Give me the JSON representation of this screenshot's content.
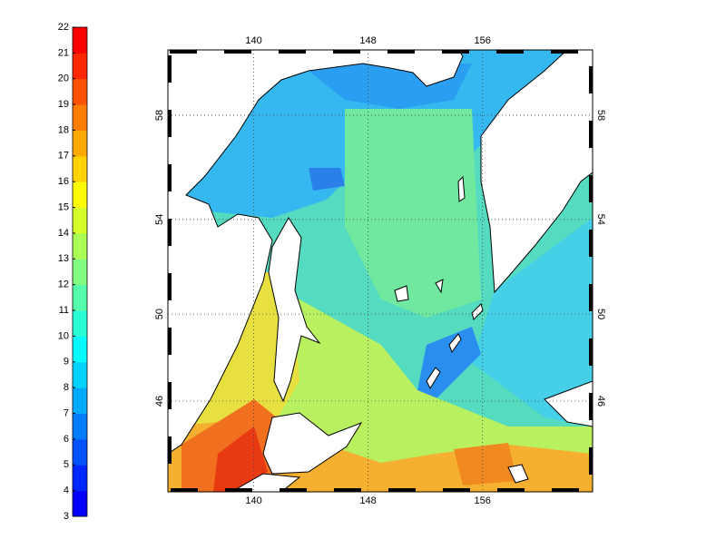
{
  "chart_data": {
    "type": "map",
    "xlim": [
      134,
      163.7
    ],
    "ylim": [
      41.5,
      60.3
    ],
    "xticks": [
      140,
      148,
      156
    ],
    "yticks": [
      46,
      50,
      54,
      58
    ],
    "grid": true,
    "colorbar": {
      "range": [
        3,
        22
      ],
      "ticks": [
        3,
        4,
        5,
        6,
        7,
        8,
        9,
        10,
        11,
        12,
        13,
        14,
        15,
        16,
        17,
        18,
        19,
        20,
        21,
        22
      ],
      "colormap": "jet"
    }
  }
}
